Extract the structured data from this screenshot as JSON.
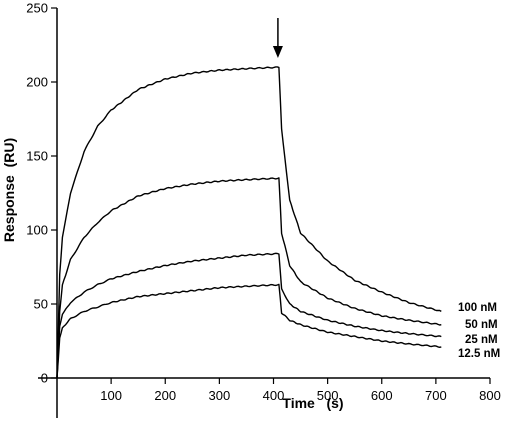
{
  "chart_data": {
    "type": "line",
    "title": "",
    "xlabel": "Time   (s)",
    "ylabel": "Response  (RU)",
    "xlim": [
      -10,
      800
    ],
    "ylim": [
      0,
      250
    ],
    "xticks": [
      "100",
      "200",
      "300",
      "400",
      "500",
      "600",
      "700",
      "800"
    ],
    "yticks": [
      "0",
      "50",
      "100",
      "150",
      "200",
      "250"
    ],
    "xtick_values": [
      100,
      200,
      300,
      400,
      500,
      600,
      700,
      800
    ],
    "ytick_values": [
      0,
      50,
      100,
      150,
      200,
      250
    ],
    "grid": false,
    "annotation": {
      "type": "down-arrow",
      "x": 410,
      "description": "arrow marking start of dissociation"
    },
    "injection_start": 0,
    "injection_end": 410,
    "series": [
      {
        "name": "100  nM",
        "x": [
          0,
          5,
          10,
          25,
          50,
          75,
          100,
          150,
          200,
          250,
          300,
          350,
          410,
          415,
          430,
          450,
          500,
          550,
          600,
          650,
          710
        ],
        "y": [
          0,
          70,
          95,
          125,
          153,
          170,
          181,
          195,
          202,
          206,
          208,
          209,
          210,
          168,
          120,
          98,
          79,
          66,
          58,
          51,
          45
        ]
      },
      {
        "name": "50  nM",
        "x": [
          0,
          5,
          10,
          25,
          50,
          75,
          100,
          150,
          200,
          250,
          300,
          350,
          410,
          415,
          430,
          450,
          500,
          550,
          600,
          650,
          710
        ],
        "y": [
          0,
          45,
          63,
          80,
          95,
          105,
          113,
          123,
          128,
          131,
          133,
          134,
          135,
          98,
          76,
          65,
          54,
          47,
          42,
          39,
          36
        ]
      },
      {
        "name": "25  nM",
        "x": [
          0,
          5,
          10,
          25,
          50,
          75,
          100,
          150,
          200,
          250,
          300,
          350,
          410,
          415,
          430,
          450,
          500,
          550,
          600,
          650,
          710
        ],
        "y": [
          0,
          35,
          43,
          51,
          58,
          63,
          67,
          72,
          76,
          79,
          81,
          83,
          84,
          60,
          50,
          45,
          39,
          35,
          32,
          30,
          28
        ]
      },
      {
        "name": "12.5  nM",
        "x": [
          0,
          5,
          10,
          25,
          50,
          75,
          100,
          150,
          200,
          250,
          300,
          350,
          410,
          415,
          430,
          450,
          500,
          550,
          600,
          650,
          710
        ],
        "y": [
          0,
          27,
          34,
          40,
          45,
          48,
          51,
          55,
          57,
          59,
          61,
          62,
          63,
          44,
          39,
          36,
          31,
          28,
          25,
          23,
          21
        ]
      }
    ],
    "series_labels": [
      "100  nM",
      "50  nM",
      "25  nM",
      "12.5  nM"
    ]
  }
}
